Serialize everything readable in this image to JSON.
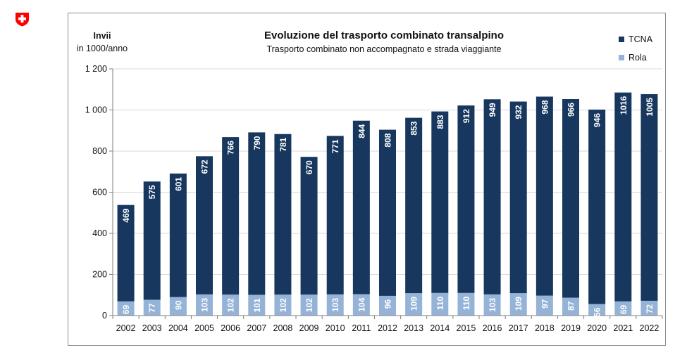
{
  "chart_data": {
    "type": "bar",
    "stacked": true,
    "title": "Evoluzione del trasporto combinato transalpino",
    "subtitle": "Trasporto combinato non accompagnato e strada viaggiante",
    "ylabel_line1": "Invii",
    "ylabel_line2": "in 1000/anno",
    "ylim": [
      0,
      1200
    ],
    "yticks": [
      0,
      200,
      400,
      600,
      800,
      1000,
      1200
    ],
    "ytick_labels": [
      "0",
      "200",
      "400",
      "600",
      "800",
      "1 000",
      "1 200"
    ],
    "grid": true,
    "legend_position": "top-right",
    "categories": [
      "2002",
      "2003",
      "2004",
      "2005",
      "2006",
      "2007",
      "2008",
      "2009",
      "2010",
      "2011",
      "2012",
      "2013",
      "2014",
      "2015",
      "2016",
      "2017",
      "2018",
      "2019",
      "2020",
      "2021",
      "2022"
    ],
    "series": [
      {
        "name": "Rola",
        "color": "#95b3d7",
        "values": [
          69,
          77,
          90,
          103,
          102,
          101,
          102,
          102,
          103,
          104,
          96,
          109,
          110,
          110,
          103,
          109,
          97,
          87,
          56,
          69,
          72
        ]
      },
      {
        "name": "TCNA",
        "color": "#17375e",
        "values": [
          469,
          575,
          601,
          672,
          766,
          790,
          781,
          670,
          771,
          844,
          808,
          853,
          883,
          912,
          949,
          932,
          968,
          966,
          946,
          1016,
          1005
        ]
      }
    ],
    "legend": [
      {
        "name": "TCNA",
        "color": "#17375e"
      },
      {
        "name": "Rola",
        "color": "#95b3d7"
      }
    ]
  },
  "colors": {
    "logo_red": "#ff0000",
    "axis": "#7f7f7f",
    "grid": "#d9d9d9"
  },
  "icons": {
    "logo": "swiss-cross-icon"
  }
}
